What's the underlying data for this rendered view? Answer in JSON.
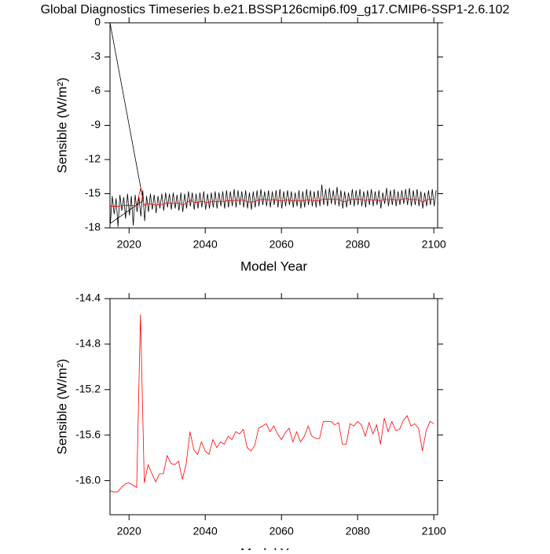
{
  "chart_data": [
    {
      "type": "line",
      "title": "Global Diagnostics Timeseries b.e21.BSSP126cmip6.f09_g17.CMIP6-SSP1-2.6.102",
      "x_label": "Model Year",
      "y_label": "Sensible (W/m²)",
      "xlim": [
        2015,
        2101
      ],
      "xticks": [
        2020,
        2040,
        2060,
        2080,
        2100
      ],
      "ylim": [
        -18,
        0
      ],
      "yticks": [
        0,
        -3,
        -6,
        -9,
        -12,
        -15,
        -18
      ],
      "series": [
        {
          "color": "#000000",
          "x": [
            2015,
            2023.7,
            2015.1,
            2015.6,
            2016.1,
            2016.6,
            2017.1,
            2017.6,
            2018.1,
            2018.6,
            2019.1,
            2019.6,
            2020.1,
            2020.6,
            2021.1,
            2021.6,
            2022.1,
            2022.6,
            2023.1,
            2023.6,
            2024.1,
            2024.6,
            2025.1,
            2025.6,
            2026.1,
            2026.6,
            2027.1,
            2027.6,
            2028.1,
            2028.6,
            2029.1,
            2029.6,
            2030.1,
            2030.6,
            2031.1,
            2031.6,
            2032.1,
            2032.6,
            2033.1,
            2033.6,
            2034.1,
            2034.6,
            2035.1,
            2035.6,
            2036.1,
            2036.6,
            2037.1,
            2037.6,
            2038.1,
            2038.6,
            2039.1,
            2039.6,
            2040.1,
            2040.6,
            2041.1,
            2041.6,
            2042.1,
            2042.6,
            2043.1,
            2043.6,
            2044.1,
            2044.6,
            2045.1,
            2045.6,
            2046.1,
            2046.6,
            2047.1,
            2047.6,
            2048.1,
            2048.6,
            2049.1,
            2049.6,
            2050.1,
            2050.6,
            2051.1,
            2051.6,
            2052.1,
            2052.6,
            2053.1,
            2053.6,
            2054.1,
            2054.6,
            2055.1,
            2055.6,
            2056.1,
            2056.6,
            2057.1,
            2057.6,
            2058.1,
            2058.6,
            2059.1,
            2059.6,
            2060.1,
            2060.6,
            2061.1,
            2061.6,
            2062.1,
            2062.6,
            2063.1,
            2063.6,
            2064.1,
            2064.6,
            2065.1,
            2065.6,
            2066.1,
            2066.6,
            2067.1,
            2067.6,
            2068.1,
            2068.6,
            2069.1,
            2069.6,
            2070.1,
            2070.6,
            2071.1,
            2071.6,
            2072.1,
            2072.6,
            2073.1,
            2073.6,
            2074.1,
            2074.6,
            2075.1,
            2075.6,
            2076.1,
            2076.6,
            2077.1,
            2077.6,
            2078.1,
            2078.6,
            2079.1,
            2079.6,
            2080.1,
            2080.6,
            2081.1,
            2081.6,
            2082.1,
            2082.6,
            2083.1,
            2083.6,
            2084.1,
            2084.6,
            2085.1,
            2085.6,
            2086.1,
            2086.6,
            2087.1,
            2087.6,
            2088.1,
            2088.6,
            2089.1,
            2089.6,
            2090.1,
            2090.6,
            2091.1,
            2091.6,
            2092.1,
            2092.6,
            2093.1,
            2093.6,
            2094.1,
            2094.6,
            2095.1,
            2095.6,
            2096.1,
            2096.6,
            2097.1,
            2097.6,
            2098.1,
            2098.6,
            2099.1,
            2099.6,
            2100.1,
            2100.6
          ],
          "values": [
            0,
            -15.6,
            -17.6,
            -15.2,
            -16.8,
            -15.4,
            -17.9,
            -15.1,
            -16.5,
            -15.3,
            -17.2,
            -15.0,
            -16.9,
            -15.2,
            -17.8,
            -15.1,
            -16.6,
            -15.3,
            -17.0,
            -14.7,
            -17.4,
            -15.2,
            -16.6,
            -15.0,
            -16.4,
            -15.1,
            -16.7,
            -15.2,
            -16.3,
            -15.0,
            -16.5,
            -14.9,
            -16.2,
            -15.0,
            -16.4,
            -14.9,
            -16.3,
            -15.1,
            -16.5,
            -14.9,
            -16.6,
            -15.0,
            -16.3,
            -14.8,
            -16.1,
            -14.9,
            -16.4,
            -15.0,
            -16.3,
            -14.9,
            -16.2,
            -14.8,
            -16.4,
            -15.0,
            -16.3,
            -14.9,
            -16.2,
            -14.8,
            -16.3,
            -14.9,
            -16.1,
            -14.8,
            -16.3,
            -14.7,
            -16.2,
            -14.8,
            -16.1,
            -14.6,
            -16.2,
            -14.7,
            -16.0,
            -14.8,
            -16.2,
            -14.7,
            -16.3,
            -14.9,
            -16.4,
            -14.8,
            -16.2,
            -14.7,
            -16.1,
            -14.6,
            -16.0,
            -14.8,
            -16.1,
            -14.7,
            -16.2,
            -14.8,
            -16.0,
            -14.7,
            -16.2,
            -14.6,
            -16.3,
            -14.8,
            -16.1,
            -14.7,
            -16.0,
            -14.8,
            -16.2,
            -14.9,
            -16.1,
            -14.7,
            -16.3,
            -14.8,
            -16.2,
            -14.6,
            -16.0,
            -14.7,
            -16.1,
            -14.8,
            -16.2,
            -14.7,
            -16.1,
            -14.2,
            -16.0,
            -14.6,
            -16.1,
            -14.5,
            -15.9,
            -14.7,
            -16.0,
            -14.4,
            -16.1,
            -14.7,
            -16.3,
            -14.8,
            -16.2,
            -14.9,
            -16.0,
            -14.6,
            -16.1,
            -14.7,
            -16.0,
            -14.6,
            -16.1,
            -14.8,
            -16.2,
            -14.7,
            -16.0,
            -14.6,
            -16.1,
            -14.8,
            -16.0,
            -14.7,
            -16.3,
            -14.9,
            -15.9,
            -14.5,
            -16.1,
            -14.7,
            -16.0,
            -14.6,
            -16.1,
            -14.8,
            -16.0,
            -14.7,
            -15.9,
            -14.6,
            -16.0,
            -14.5,
            -16.1,
            -14.7,
            -16.0,
            -14.6,
            -16.1,
            -14.8,
            -16.3,
            -14.9,
            -16.1,
            -14.7,
            -16.0,
            -14.6,
            -16.1,
            -14.7
          ]
        },
        {
          "color": "#ff0000",
          "x": [
            2015,
            2016,
            2017,
            2018,
            2019,
            2020,
            2021,
            2022,
            2023,
            2024,
            2025,
            2026,
            2027,
            2028,
            2029,
            2030,
            2031,
            2032,
            2033,
            2034,
            2035,
            2036,
            2037,
            2038,
            2039,
            2040,
            2041,
            2042,
            2043,
            2044,
            2045,
            2046,
            2047,
            2048,
            2049,
            2050,
            2051,
            2052,
            2053,
            2054,
            2055,
            2056,
            2057,
            2058,
            2059,
            2060,
            2061,
            2062,
            2063,
            2064,
            2065,
            2066,
            2067,
            2068,
            2069,
            2070,
            2071,
            2072,
            2073,
            2074,
            2075,
            2076,
            2077,
            2078,
            2079,
            2080,
            2081,
            2082,
            2083,
            2084,
            2085,
            2086,
            2087,
            2088,
            2089,
            2090,
            2091,
            2092,
            2093,
            2094,
            2095,
            2096,
            2097,
            2098,
            2099,
            2100
          ],
          "values": [
            -16.09,
            -16.1,
            -16.1,
            -16.06,
            -16.03,
            -16.02,
            -16.04,
            -16.06,
            -14.54,
            -16.02,
            -15.86,
            -15.94,
            -16.01,
            -15.94,
            -15.94,
            -15.78,
            -15.85,
            -15.86,
            -15.83,
            -15.99,
            -15.85,
            -15.57,
            -15.73,
            -15.77,
            -15.66,
            -15.74,
            -15.77,
            -15.64,
            -15.71,
            -15.66,
            -15.68,
            -15.61,
            -15.64,
            -15.57,
            -15.59,
            -15.55,
            -15.71,
            -15.74,
            -15.69,
            -15.54,
            -15.52,
            -15.5,
            -15.57,
            -15.52,
            -15.59,
            -15.64,
            -15.58,
            -15.54,
            -15.66,
            -15.57,
            -15.66,
            -15.61,
            -15.52,
            -15.61,
            -15.63,
            -15.63,
            -15.48,
            -15.48,
            -15.48,
            -15.51,
            -15.49,
            -15.68,
            -15.68,
            -15.5,
            -15.52,
            -15.48,
            -15.51,
            -15.61,
            -15.49,
            -15.59,
            -15.51,
            -15.68,
            -15.45,
            -15.57,
            -15.48,
            -15.56,
            -15.55,
            -15.47,
            -15.43,
            -15.52,
            -15.5,
            -15.54,
            -15.74,
            -15.56,
            -15.48,
            -15.5
          ]
        }
      ]
    },
    {
      "type": "line",
      "x_label": "Model Year",
      "y_label": "Sensible (W/m²)",
      "xlim": [
        2015,
        2101
      ],
      "xticks": [
        2020,
        2040,
        2060,
        2080,
        2100
      ],
      "ylim": [
        -16.3,
        -14.4
      ],
      "yticks": [
        -14.4,
        -14.8,
        -15.2,
        -15.6,
        {
          "value": -16,
          "label": "-16.0"
        }
      ],
      "series": [
        {
          "color": "#ff0000",
          "x": [
            2015,
            2016,
            2017,
            2018,
            2019,
            2020,
            2021,
            2022,
            2023,
            2024,
            2025,
            2026,
            2027,
            2028,
            2029,
            2030,
            2031,
            2032,
            2033,
            2034,
            2035,
            2036,
            2037,
            2038,
            2039,
            2040,
            2041,
            2042,
            2043,
            2044,
            2045,
            2046,
            2047,
            2048,
            2049,
            2050,
            2051,
            2052,
            2053,
            2054,
            2055,
            2056,
            2057,
            2058,
            2059,
            2060,
            2061,
            2062,
            2063,
            2064,
            2065,
            2066,
            2067,
            2068,
            2069,
            2070,
            2071,
            2072,
            2073,
            2074,
            2075,
            2076,
            2077,
            2078,
            2079,
            2080,
            2081,
            2082,
            2083,
            2084,
            2085,
            2086,
            2087,
            2088,
            2089,
            2090,
            2091,
            2092,
            2093,
            2094,
            2095,
            2096,
            2097,
            2098,
            2099,
            2100
          ],
          "values": [
            -16.09,
            -16.1,
            -16.1,
            -16.06,
            -16.03,
            -16.02,
            -16.04,
            -16.06,
            -14.54,
            -16.02,
            -15.86,
            -15.94,
            -16.01,
            -15.94,
            -15.94,
            -15.78,
            -15.85,
            -15.86,
            -15.83,
            -15.99,
            -15.85,
            -15.57,
            -15.73,
            -15.77,
            -15.66,
            -15.74,
            -15.77,
            -15.64,
            -15.71,
            -15.66,
            -15.68,
            -15.61,
            -15.64,
            -15.57,
            -15.59,
            -15.55,
            -15.71,
            -15.74,
            -15.69,
            -15.54,
            -15.52,
            -15.5,
            -15.57,
            -15.52,
            -15.59,
            -15.64,
            -15.58,
            -15.54,
            -15.66,
            -15.57,
            -15.66,
            -15.61,
            -15.52,
            -15.61,
            -15.63,
            -15.63,
            -15.48,
            -15.48,
            -15.48,
            -15.51,
            -15.49,
            -15.68,
            -15.68,
            -15.5,
            -15.52,
            -15.48,
            -15.51,
            -15.61,
            -15.49,
            -15.59,
            -15.51,
            -15.68,
            -15.45,
            -15.57,
            -15.48,
            -15.56,
            -15.55,
            -15.47,
            -15.43,
            -15.52,
            -15.5,
            -15.54,
            -15.74,
            -15.56,
            -15.48,
            -15.5
          ]
        }
      ]
    }
  ]
}
